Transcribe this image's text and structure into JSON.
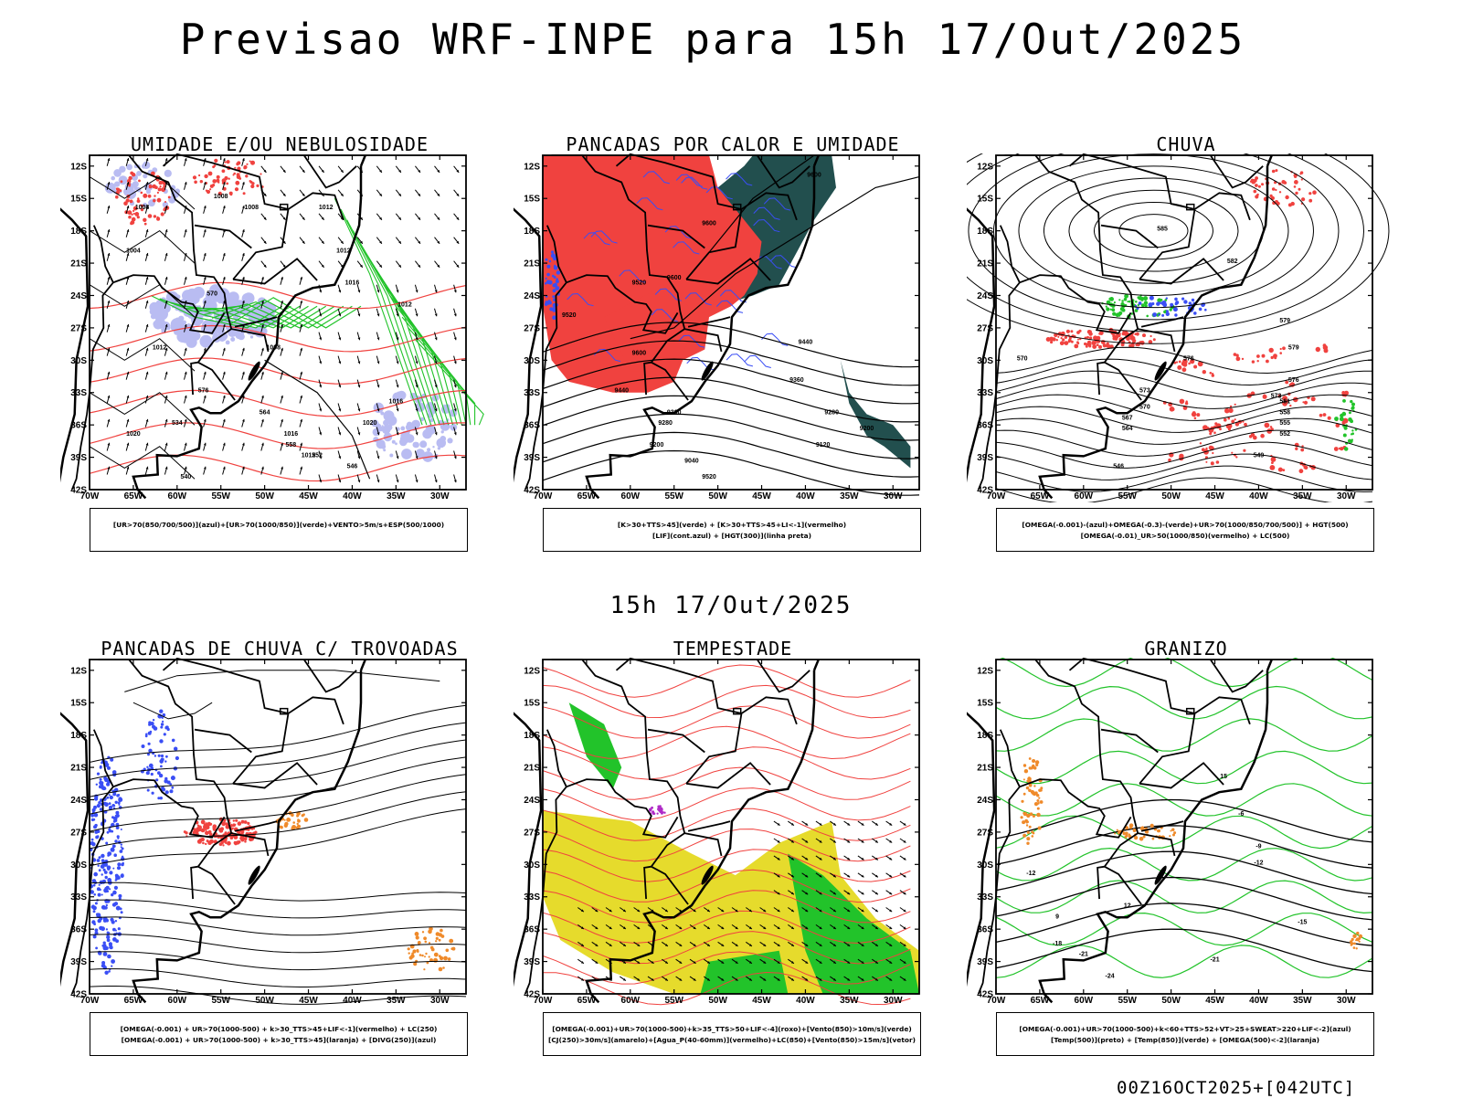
{
  "title": "Previsao WRF-INPE  para 15h 17/Out/2025",
  "subtitle": "15h 17/Out/2025",
  "footer": "00Z16OCT2025+[042UTC]",
  "axes": {
    "lat_labels": [
      "12S",
      "15S",
      "18S",
      "21S",
      "24S",
      "27S",
      "30S",
      "33S",
      "36S",
      "39S",
      "42S"
    ],
    "lon_labels": [
      "70W",
      "65W",
      "60W",
      "55W",
      "50W",
      "45W",
      "40W",
      "35W",
      "30W"
    ]
  },
  "colors": {
    "red": "#f0423f",
    "green": "#22c32a",
    "blue": "#3a4ef5",
    "lavender": "#b9bcf2",
    "darkteal": "#224f4e",
    "yellow": "#e6db2c",
    "orange": "#ef8a2a",
    "purple": "#b02cc7"
  },
  "panels": [
    {
      "title": "UMIDADE E/OU NEBULOSIDADE",
      "legend": [
        "[UR>70(850/700/500)](azul)+[UR>70(1000/850)](verde)+VENTO>5m/s+ESP(500/1000)"
      ],
      "labels": [
        "1008",
        "1008",
        "1008",
        "1012",
        "1012",
        "1004",
        "1016",
        "1020",
        "1016",
        "1012",
        "1008",
        "1012",
        "570",
        "576",
        "564",
        "558",
        "552",
        "546",
        "540",
        "534",
        "1020",
        "1016",
        "1012"
      ]
    },
    {
      "title": "PANCADAS POR CALOR E UMIDADE",
      "legend": [
        "[K>30+TTS>45](verde) + [K>30+TTS>45+LI<-1](vermelho)",
        "[LIF](cont.azul) + [HGT(300)](linha preta)"
      ],
      "labels": [
        "9600",
        "9600",
        "9600",
        "9520",
        "9520",
        "9440",
        "9440",
        "9360",
        "9360",
        "9280",
        "9280",
        "9200",
        "9200",
        "9120",
        "9040",
        "9520",
        "9600"
      ]
    },
    {
      "title": "CHUVA",
      "legend": [
        "[OMEGA(-0.001)-(azul)+OMEGA(-0.3)-(verde)+UR>70(1000/850/700/500)] + HGT(500)",
        "[OMEGA(-0.01)_UR>50(1000/850)(vermelho) + LC(500)"
      ],
      "labels": [
        "585",
        "582",
        "579",
        "576",
        "573",
        "570",
        "567",
        "564",
        "561",
        "558",
        "555",
        "552",
        "549",
        "546",
        "579",
        "576",
        "573",
        "570"
      ]
    },
    {
      "title": "PANCADAS DE CHUVA C/ TROVOADAS",
      "legend": [
        "[OMEGA(-0.001) + UR>70(1000-500) + k>30_TTS>45+LIF<-1](vermelho) + LC(250)",
        "[OMEGA(-0.001) + UR>70(1000-500) + k>30_TTS>45](laranja) + [DIVG(250)](azul)"
      ],
      "labels": []
    },
    {
      "title": "TEMPESTADE",
      "legend": [
        "[OMEGA(-0.001)+UR>70(1000-500)+k>35_TTS>50+LIF<-4](roxo)+[Vento(850)>10m/s](verde)",
        "[CJ(250)>30m/s](amarelo)+[Agua_P(40-60mm)](vermelho)+LC(850)+[Vento(850)>15m/s](vetor)"
      ],
      "labels": []
    },
    {
      "title": "GRANIZO",
      "legend": [
        "[OMEGA(-0.001)+UR>70(1000-500)+k<60+TTS>52+VT>25+SWEAT>220+LIF<-2](azul)",
        "[Temp(500)](preto) + [Temp(850)](verde) + [OMEGA(500)<-2](laranja)"
      ],
      "labels": [
        "-6",
        "-9",
        "-12",
        "-12",
        "-15",
        "-18",
        "-21",
        "-21",
        "-24",
        "15",
        "12",
        "9"
      ]
    }
  ]
}
